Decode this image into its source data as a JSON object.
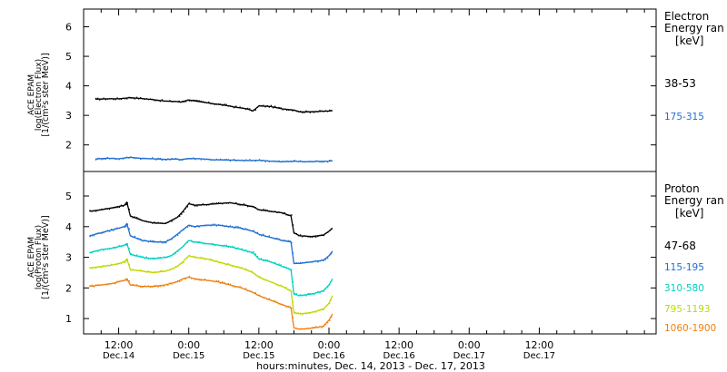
{
  "x_axis": {
    "title": "hours:minutes, Dec. 14, 2013 - Dec. 17, 2013",
    "range_hours": [
      6,
      104
    ],
    "ticks": [
      {
        "hour": 12,
        "time": "12:00",
        "day": "Dec.14"
      },
      {
        "hour": 24,
        "time": "0:00",
        "day": "Dec.15"
      },
      {
        "hour": 36,
        "time": "12:00",
        "day": "Dec.15"
      },
      {
        "hour": 48,
        "time": "0:00",
        "day": "Dec.16"
      },
      {
        "hour": 60,
        "time": "12:00",
        "day": "Dec.16"
      },
      {
        "hour": 72,
        "time": "0:00",
        "day": "Dec.17"
      },
      {
        "hour": 84,
        "time": "12:00",
        "day": "Dec.17"
      }
    ]
  },
  "chart_data": [
    {
      "type": "scatter",
      "ylabel_lines": [
        "ACE EPAM",
        "log(Electron Flux)",
        "[1/(cm²s ster MeV)]"
      ],
      "yrange": [
        1.1,
        6.6
      ],
      "yticks": [
        2,
        3,
        4,
        5,
        6
      ],
      "legend_title": [
        "Electron",
        "Energy ran"
      ],
      "legend_unit": "[keV]",
      "series": [
        {
          "name": "38-53",
          "color": "#000000",
          "points": [
            [
              8,
              3.55
            ],
            [
              10,
              3.56
            ],
            [
              12,
              3.56
            ],
            [
              14,
              3.6
            ],
            [
              16,
              3.57
            ],
            [
              18,
              3.53
            ],
            [
              20,
              3.48
            ],
            [
              22,
              3.47
            ],
            [
              22.5,
              3.45
            ],
            [
              24,
              3.52
            ],
            [
              26,
              3.46
            ],
            [
              28,
              3.4
            ],
            [
              30,
              3.35
            ],
            [
              32,
              3.28
            ],
            [
              34,
              3.22
            ],
            [
              35,
              3.15
            ],
            [
              36,
              3.32
            ],
            [
              38,
              3.3
            ],
            [
              40,
              3.22
            ],
            [
              42,
              3.18
            ],
            [
              43,
              3.12
            ],
            [
              44,
              3.12
            ],
            [
              46,
              3.13
            ],
            [
              48,
              3.15
            ],
            [
              48.6,
              3.16
            ]
          ]
        },
        {
          "name": "175-315",
          "color": "#1e6fd0",
          "points": [
            [
              8,
              1.52
            ],
            [
              10,
              1.55
            ],
            [
              12,
              1.53
            ],
            [
              14,
              1.58
            ],
            [
              16,
              1.54
            ],
            [
              18,
              1.53
            ],
            [
              20,
              1.51
            ],
            [
              22,
              1.52
            ],
            [
              22.5,
              1.5
            ],
            [
              24,
              1.54
            ],
            [
              26,
              1.53
            ],
            [
              28,
              1.5
            ],
            [
              30,
              1.49
            ],
            [
              32,
              1.48
            ],
            [
              34,
              1.47
            ],
            [
              36,
              1.48
            ],
            [
              38,
              1.45
            ],
            [
              40,
              1.43
            ],
            [
              42,
              1.45
            ],
            [
              44,
              1.43
            ],
            [
              46,
              1.44
            ],
            [
              48,
              1.45
            ],
            [
              48.6,
              1.46
            ]
          ]
        }
      ]
    },
    {
      "type": "scatter",
      "ylabel_lines": [
        "ACE EPAM",
        "log(Proton Flux)",
        "[1/(cm²s ster MeV)]"
      ],
      "yrange": [
        0.5,
        5.8
      ],
      "yticks": [
        1,
        2,
        3,
        4,
        5
      ],
      "legend_title": [
        "Proton",
        "Energy ran"
      ],
      "legend_unit": "[keV]",
      "series": [
        {
          "name": "47-68",
          "color": "#000000",
          "points": [
            [
              7,
              4.5
            ],
            [
              9,
              4.55
            ],
            [
              11,
              4.62
            ],
            [
              13,
              4.7
            ],
            [
              13.4,
              4.8
            ],
            [
              14,
              4.35
            ],
            [
              16,
              4.2
            ],
            [
              18,
              4.12
            ],
            [
              20,
              4.1
            ],
            [
              21,
              4.2
            ],
            [
              22,
              4.3
            ],
            [
              23,
              4.5
            ],
            [
              24,
              4.75
            ],
            [
              25,
              4.7
            ],
            [
              27,
              4.72
            ],
            [
              29,
              4.75
            ],
            [
              31,
              4.78
            ],
            [
              33,
              4.72
            ],
            [
              35,
              4.65
            ],
            [
              36,
              4.55
            ],
            [
              38,
              4.5
            ],
            [
              40,
              4.45
            ],
            [
              41.5,
              4.35
            ],
            [
              42,
              3.8
            ],
            [
              43,
              3.7
            ],
            [
              45,
              3.68
            ],
            [
              47,
              3.72
            ],
            [
              48,
              3.85
            ],
            [
              48.6,
              3.95
            ]
          ]
        },
        {
          "name": "115-195",
          "color": "#1e6fd0",
          "points": [
            [
              7,
              3.7
            ],
            [
              9,
              3.8
            ],
            [
              11,
              3.9
            ],
            [
              13,
              4.0
            ],
            [
              13.4,
              4.1
            ],
            [
              14,
              3.7
            ],
            [
              16,
              3.55
            ],
            [
              18,
              3.5
            ],
            [
              20,
              3.5
            ],
            [
              21,
              3.6
            ],
            [
              22,
              3.75
            ],
            [
              23,
              3.9
            ],
            [
              24,
              4.05
            ],
            [
              25,
              4.0
            ],
            [
              27,
              4.05
            ],
            [
              29,
              4.05
            ],
            [
              31,
              4.0
            ],
            [
              33,
              3.95
            ],
            [
              35,
              3.85
            ],
            [
              36,
              3.75
            ],
            [
              38,
              3.65
            ],
            [
              40,
              3.55
            ],
            [
              41.5,
              3.5
            ],
            [
              42,
              2.8
            ],
            [
              43,
              2.8
            ],
            [
              45,
              2.85
            ],
            [
              47,
              2.9
            ],
            [
              48,
              3.05
            ],
            [
              48.6,
              3.2
            ]
          ]
        },
        {
          "name": "310-580",
          "color": "#00d0c0",
          "points": [
            [
              7,
              3.15
            ],
            [
              9,
              3.25
            ],
            [
              11,
              3.3
            ],
            [
              13,
              3.4
            ],
            [
              13.4,
              3.45
            ],
            [
              14,
              3.1
            ],
            [
              16,
              3.0
            ],
            [
              18,
              2.95
            ],
            [
              20,
              3.0
            ],
            [
              21,
              3.05
            ],
            [
              22,
              3.2
            ],
            [
              23,
              3.35
            ],
            [
              24,
              3.55
            ],
            [
              25,
              3.5
            ],
            [
              27,
              3.45
            ],
            [
              29,
              3.4
            ],
            [
              31,
              3.35
            ],
            [
              33,
              3.25
            ],
            [
              35,
              3.15
            ],
            [
              36,
              2.95
            ],
            [
              38,
              2.85
            ],
            [
              40,
              2.7
            ],
            [
              41.5,
              2.6
            ],
            [
              42,
              1.8
            ],
            [
              43,
              1.75
            ],
            [
              45,
              1.8
            ],
            [
              47,
              1.9
            ],
            [
              48,
              2.1
            ],
            [
              48.6,
              2.3
            ]
          ]
        },
        {
          "name": "795-1193",
          "color": "#c0d800",
          "points": [
            [
              7,
              2.65
            ],
            [
              9,
              2.7
            ],
            [
              11,
              2.75
            ],
            [
              13,
              2.85
            ],
            [
              13.4,
              2.95
            ],
            [
              14,
              2.6
            ],
            [
              16,
              2.55
            ],
            [
              18,
              2.5
            ],
            [
              20,
              2.55
            ],
            [
              21,
              2.6
            ],
            [
              22,
              2.7
            ],
            [
              23,
              2.85
            ],
            [
              24,
              3.05
            ],
            [
              25,
              3.0
            ],
            [
              27,
              2.95
            ],
            [
              29,
              2.85
            ],
            [
              31,
              2.75
            ],
            [
              33,
              2.65
            ],
            [
              35,
              2.5
            ],
            [
              36,
              2.35
            ],
            [
              38,
              2.2
            ],
            [
              40,
              2.05
            ],
            [
              41.5,
              1.9
            ],
            [
              42,
              1.2
            ],
            [
              43,
              1.15
            ],
            [
              45,
              1.2
            ],
            [
              47,
              1.3
            ],
            [
              48,
              1.5
            ],
            [
              48.6,
              1.75
            ]
          ]
        },
        {
          "name": "1060-1900",
          "color": "#f08010",
          "points": [
            [
              7,
              2.05
            ],
            [
              9,
              2.1
            ],
            [
              11,
              2.15
            ],
            [
              13,
              2.25
            ],
            [
              13.4,
              2.3
            ],
            [
              14,
              2.1
            ],
            [
              16,
              2.05
            ],
            [
              18,
              2.05
            ],
            [
              20,
              2.1
            ],
            [
              21,
              2.15
            ],
            [
              22,
              2.2
            ],
            [
              23,
              2.3
            ],
            [
              24,
              2.35
            ],
            [
              25,
              2.3
            ],
            [
              27,
              2.25
            ],
            [
              29,
              2.2
            ],
            [
              31,
              2.1
            ],
            [
              33,
              2.0
            ],
            [
              35,
              1.85
            ],
            [
              36,
              1.75
            ],
            [
              38,
              1.6
            ],
            [
              40,
              1.45
            ],
            [
              41.5,
              1.35
            ],
            [
              42,
              0.7
            ],
            [
              43,
              0.65
            ],
            [
              45,
              0.68
            ],
            [
              47,
              0.75
            ],
            [
              48,
              0.95
            ],
            [
              48.6,
              1.15
            ]
          ]
        }
      ]
    }
  ]
}
